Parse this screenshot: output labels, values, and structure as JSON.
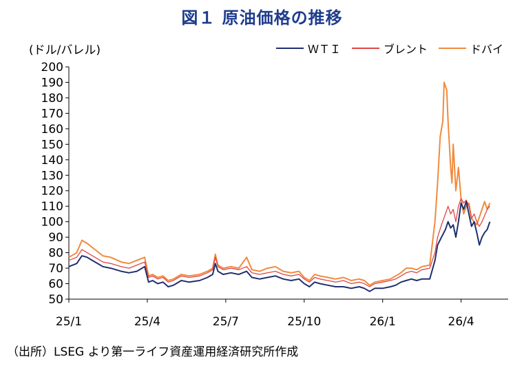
{
  "title": "図１ 原油価格の推移",
  "unit_label": "(ドル/バレル)",
  "source": "（出所）LSEG より第一ライフ資産運用経済研究所作成",
  "chart_data": {
    "type": "line",
    "ylim": [
      50,
      200
    ],
    "yticks": [
      50,
      60,
      70,
      80,
      90,
      100,
      110,
      120,
      130,
      140,
      150,
      160,
      170,
      180,
      190,
      200
    ],
    "x_range_months": [
      0,
      16.8
    ],
    "xticks": [
      {
        "label": "25/1",
        "month": 0
      },
      {
        "label": "25/4",
        "month": 3
      },
      {
        "label": "25/7",
        "month": 6
      },
      {
        "label": "25/10",
        "month": 9
      },
      {
        "label": "26/1",
        "month": 12
      },
      {
        "label": "26/4",
        "month": 15
      }
    ],
    "grid": false,
    "legend_position": "top-right",
    "series": [
      {
        "name": "ＷＴＩ",
        "color": "#1f2f6e",
        "points": [
          [
            0.0,
            71
          ],
          [
            0.3,
            73
          ],
          [
            0.5,
            78
          ],
          [
            0.7,
            77
          ],
          [
            1.0,
            74
          ],
          [
            1.3,
            71
          ],
          [
            1.6,
            70
          ],
          [
            2.0,
            68
          ],
          [
            2.3,
            67
          ],
          [
            2.6,
            68
          ],
          [
            2.9,
            71
          ],
          [
            3.05,
            61
          ],
          [
            3.2,
            62
          ],
          [
            3.4,
            60
          ],
          [
            3.6,
            61
          ],
          [
            3.8,
            58
          ],
          [
            4.0,
            59
          ],
          [
            4.3,
            62
          ],
          [
            4.6,
            61
          ],
          [
            5.0,
            62
          ],
          [
            5.3,
            64
          ],
          [
            5.5,
            66
          ],
          [
            5.6,
            73
          ],
          [
            5.7,
            68
          ],
          [
            5.9,
            66
          ],
          [
            6.2,
            67
          ],
          [
            6.5,
            66
          ],
          [
            6.8,
            68
          ],
          [
            7.0,
            64
          ],
          [
            7.3,
            63
          ],
          [
            7.6,
            64
          ],
          [
            7.9,
            65
          ],
          [
            8.2,
            63
          ],
          [
            8.5,
            62
          ],
          [
            8.8,
            63
          ],
          [
            9.0,
            60
          ],
          [
            9.2,
            58
          ],
          [
            9.4,
            61
          ],
          [
            9.6,
            60
          ],
          [
            9.9,
            59
          ],
          [
            10.2,
            58
          ],
          [
            10.5,
            58
          ],
          [
            10.8,
            57
          ],
          [
            11.1,
            58
          ],
          [
            11.3,
            57
          ],
          [
            11.5,
            55
          ],
          [
            11.7,
            57
          ],
          [
            12.0,
            57
          ],
          [
            12.3,
            58
          ],
          [
            12.5,
            59
          ],
          [
            12.7,
            61
          ],
          [
            12.9,
            62
          ],
          [
            13.1,
            63
          ],
          [
            13.3,
            62
          ],
          [
            13.5,
            63
          ],
          [
            13.8,
            63
          ],
          [
            14.0,
            75
          ],
          [
            14.1,
            85
          ],
          [
            14.25,
            90
          ],
          [
            14.4,
            95
          ],
          [
            14.5,
            100
          ],
          [
            14.6,
            96
          ],
          [
            14.7,
            98
          ],
          [
            14.8,
            90
          ],
          [
            14.9,
            100
          ],
          [
            15.0,
            112
          ],
          [
            15.1,
            108
          ],
          [
            15.2,
            113
          ],
          [
            15.3,
            105
          ],
          [
            15.4,
            97
          ],
          [
            15.5,
            100
          ],
          [
            15.6,
            93
          ],
          [
            15.7,
            85
          ],
          [
            15.8,
            90
          ],
          [
            15.9,
            93
          ],
          [
            16.0,
            95
          ],
          [
            16.1,
            100
          ]
        ]
      },
      {
        "name": "ブレント",
        "color": "#e04545",
        "points": [
          [
            0.0,
            75
          ],
          [
            0.3,
            77
          ],
          [
            0.5,
            82
          ],
          [
            0.7,
            80
          ],
          [
            1.0,
            77
          ],
          [
            1.3,
            74
          ],
          [
            1.6,
            73
          ],
          [
            2.0,
            71
          ],
          [
            2.3,
            70
          ],
          [
            2.6,
            72
          ],
          [
            2.9,
            74
          ],
          [
            3.05,
            64
          ],
          [
            3.2,
            65
          ],
          [
            3.4,
            63
          ],
          [
            3.6,
            64
          ],
          [
            3.8,
            61
          ],
          [
            4.0,
            62
          ],
          [
            4.3,
            65
          ],
          [
            4.6,
            64
          ],
          [
            5.0,
            65
          ],
          [
            5.3,
            67
          ],
          [
            5.5,
            69
          ],
          [
            5.6,
            77
          ],
          [
            5.7,
            71
          ],
          [
            5.9,
            69
          ],
          [
            6.2,
            70
          ],
          [
            6.5,
            69
          ],
          [
            6.8,
            71
          ],
          [
            7.0,
            67
          ],
          [
            7.3,
            66
          ],
          [
            7.6,
            67
          ],
          [
            7.9,
            68
          ],
          [
            8.2,
            66
          ],
          [
            8.5,
            65
          ],
          [
            8.8,
            66
          ],
          [
            9.0,
            63
          ],
          [
            9.2,
            61
          ],
          [
            9.4,
            64
          ],
          [
            9.6,
            63
          ],
          [
            9.9,
            62
          ],
          [
            10.2,
            61
          ],
          [
            10.5,
            62
          ],
          [
            10.8,
            60
          ],
          [
            11.1,
            61
          ],
          [
            11.3,
            60
          ],
          [
            11.5,
            58
          ],
          [
            11.7,
            60
          ],
          [
            12.0,
            61
          ],
          [
            12.3,
            62
          ],
          [
            12.5,
            63
          ],
          [
            12.7,
            65
          ],
          [
            12.9,
            67
          ],
          [
            13.1,
            68
          ],
          [
            13.3,
            67
          ],
          [
            13.5,
            69
          ],
          [
            13.8,
            70
          ],
          [
            14.0,
            80
          ],
          [
            14.1,
            90
          ],
          [
            14.25,
            98
          ],
          [
            14.4,
            105
          ],
          [
            14.5,
            110
          ],
          [
            14.6,
            105
          ],
          [
            14.7,
            108
          ],
          [
            14.8,
            100
          ],
          [
            14.9,
            110
          ],
          [
            15.0,
            115
          ],
          [
            15.1,
            112
          ],
          [
            15.2,
            114
          ],
          [
            15.3,
            110
          ],
          [
            15.4,
            102
          ],
          [
            15.5,
            105
          ],
          [
            15.6,
            100
          ],
          [
            15.7,
            97
          ],
          [
            15.8,
            100
          ],
          [
            15.9,
            104
          ],
          [
            16.0,
            108
          ],
          [
            16.1,
            110
          ]
        ]
      },
      {
        "name": "ドバイ",
        "color": "#f08a3c",
        "points": [
          [
            0.0,
            77
          ],
          [
            0.3,
            80
          ],
          [
            0.5,
            88
          ],
          [
            0.7,
            86
          ],
          [
            1.0,
            82
          ],
          [
            1.3,
            78
          ],
          [
            1.6,
            77
          ],
          [
            2.0,
            74
          ],
          [
            2.3,
            73
          ],
          [
            2.6,
            75
          ],
          [
            2.9,
            77
          ],
          [
            3.05,
            65
          ],
          [
            3.2,
            66
          ],
          [
            3.4,
            64
          ],
          [
            3.6,
            65
          ],
          [
            3.8,
            62
          ],
          [
            4.0,
            63
          ],
          [
            4.3,
            66
          ],
          [
            4.6,
            65
          ],
          [
            5.0,
            66
          ],
          [
            5.3,
            68
          ],
          [
            5.5,
            70
          ],
          [
            5.6,
            79
          ],
          [
            5.7,
            72
          ],
          [
            5.9,
            70
          ],
          [
            6.2,
            71
          ],
          [
            6.5,
            70
          ],
          [
            6.8,
            77
          ],
          [
            7.0,
            69
          ],
          [
            7.3,
            68
          ],
          [
            7.6,
            70
          ],
          [
            7.9,
            71
          ],
          [
            8.2,
            68
          ],
          [
            8.5,
            67
          ],
          [
            8.8,
            68
          ],
          [
            9.0,
            64
          ],
          [
            9.2,
            62
          ],
          [
            9.4,
            66
          ],
          [
            9.6,
            65
          ],
          [
            9.9,
            64
          ],
          [
            10.2,
            63
          ],
          [
            10.5,
            64
          ],
          [
            10.8,
            62
          ],
          [
            11.1,
            63
          ],
          [
            11.3,
            62
          ],
          [
            11.5,
            59
          ],
          [
            11.7,
            61
          ],
          [
            12.0,
            62
          ],
          [
            12.3,
            63
          ],
          [
            12.5,
            65
          ],
          [
            12.7,
            67
          ],
          [
            12.9,
            70
          ],
          [
            13.1,
            70
          ],
          [
            13.3,
            69
          ],
          [
            13.5,
            71
          ],
          [
            13.8,
            72
          ],
          [
            14.0,
            100
          ],
          [
            14.1,
            125
          ],
          [
            14.2,
            155
          ],
          [
            14.3,
            165
          ],
          [
            14.35,
            190
          ],
          [
            14.45,
            185
          ],
          [
            14.5,
            165
          ],
          [
            14.6,
            135
          ],
          [
            14.65,
            125
          ],
          [
            14.7,
            150
          ],
          [
            14.8,
            120
          ],
          [
            14.9,
            135
          ],
          [
            15.0,
            115
          ],
          [
            15.1,
            105
          ],
          [
            15.2,
            110
          ],
          [
            15.3,
            112
          ],
          [
            15.4,
            102
          ],
          [
            15.5,
            100
          ],
          [
            15.6,
            98
          ],
          [
            15.7,
            103
          ],
          [
            15.8,
            108
          ],
          [
            15.9,
            113
          ],
          [
            16.0,
            108
          ],
          [
            16.1,
            112
          ]
        ]
      }
    ]
  }
}
